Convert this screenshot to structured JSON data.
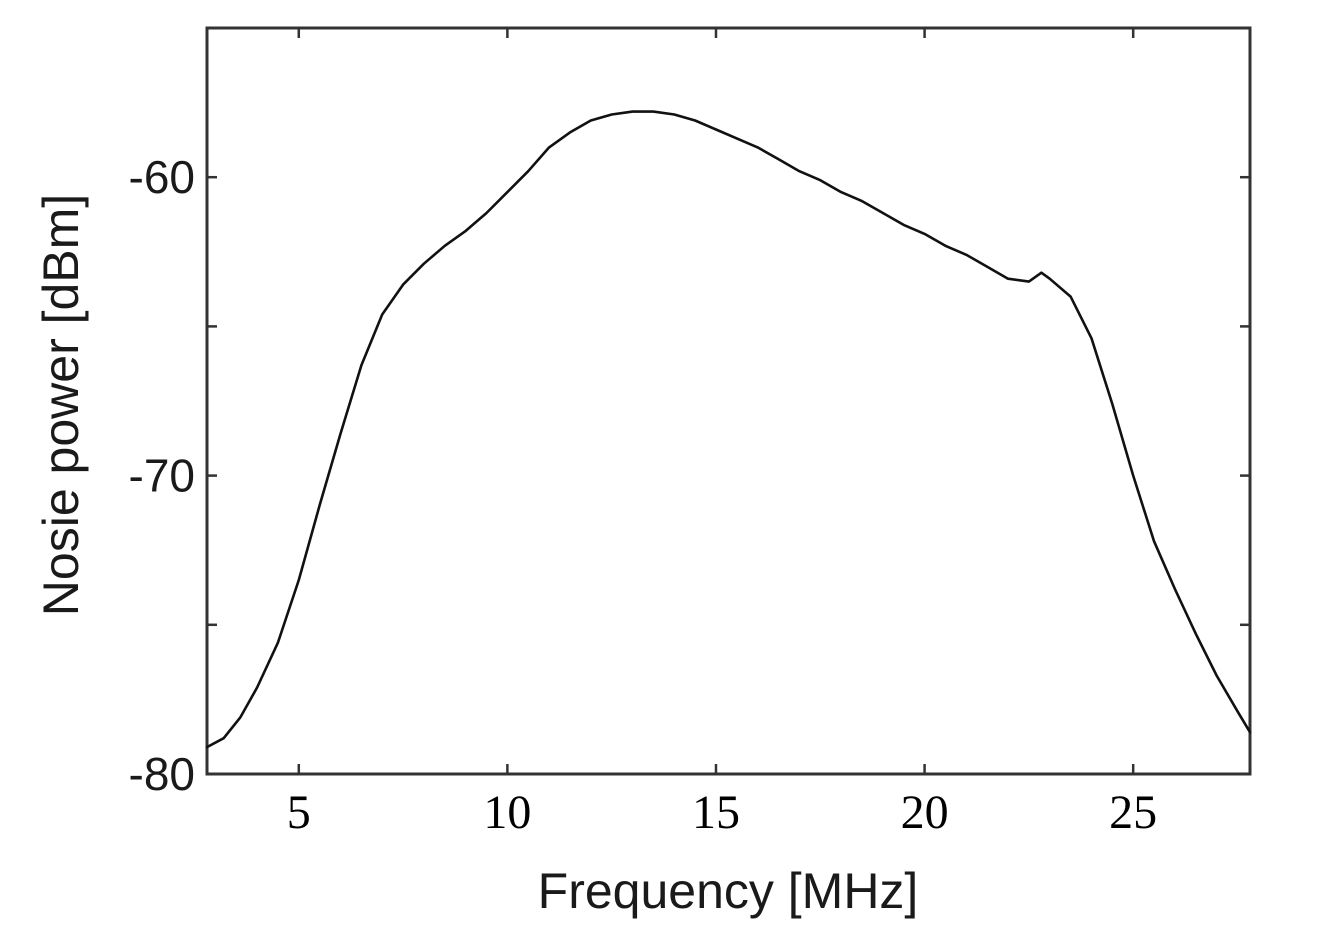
{
  "chart_data": {
    "type": "line",
    "title": "",
    "xlabel": "Frequency [MHz]",
    "ylabel": "Nosie power [dBm]",
    "xlim": [
      2.8,
      27.8
    ],
    "ylim": [
      -80,
      -55
    ],
    "xticks": [
      5,
      10,
      15,
      20,
      25
    ],
    "xtick_labels": [
      "5",
      "10",
      "15",
      "20",
      "25"
    ],
    "yticks": [
      -80,
      -75,
      -70,
      -65,
      -60,
      -55
    ],
    "ytick_labels": [
      "-80",
      "",
      "-70",
      "",
      "-60",
      ""
    ],
    "grid": false,
    "legend": "none",
    "line_color": "#111111",
    "series": [
      {
        "x": [
          2.8,
          3.2,
          3.6,
          4.0,
          4.5,
          5.0,
          5.5,
          6.0,
          6.5,
          7.0,
          7.5,
          8.0,
          8.5,
          9.0,
          9.5,
          10.0,
          10.5,
          11.0,
          11.5,
          12.0,
          12.5,
          13.0,
          13.5,
          14.0,
          14.5,
          15.0,
          15.5,
          16.0,
          16.5,
          17.0,
          17.5,
          18.0,
          18.5,
          19.0,
          19.5,
          20.0,
          20.5,
          21.0,
          21.5,
          22.0,
          22.5,
          22.8,
          23.0,
          23.5,
          24.0,
          24.5,
          25.0,
          25.5,
          26.0,
          26.5,
          27.0,
          27.5,
          27.8
        ],
        "y": [
          -79.1,
          -78.8,
          -78.1,
          -77.1,
          -75.6,
          -73.5,
          -71.0,
          -68.6,
          -66.3,
          -64.6,
          -63.6,
          -62.9,
          -62.3,
          -61.8,
          -61.2,
          -60.5,
          -59.8,
          -59.0,
          -58.5,
          -58.1,
          -57.9,
          -57.8,
          -57.8,
          -57.9,
          -58.1,
          -58.4,
          -58.7,
          -59.0,
          -59.4,
          -59.8,
          -60.1,
          -60.5,
          -60.8,
          -61.2,
          -61.6,
          -61.9,
          -62.3,
          -62.6,
          -63.0,
          -63.4,
          -63.5,
          -63.2,
          -63.4,
          -64.0,
          -65.4,
          -67.6,
          -70.0,
          -72.2,
          -73.8,
          -75.3,
          -76.7,
          -77.9,
          -78.6
        ]
      }
    ]
  }
}
